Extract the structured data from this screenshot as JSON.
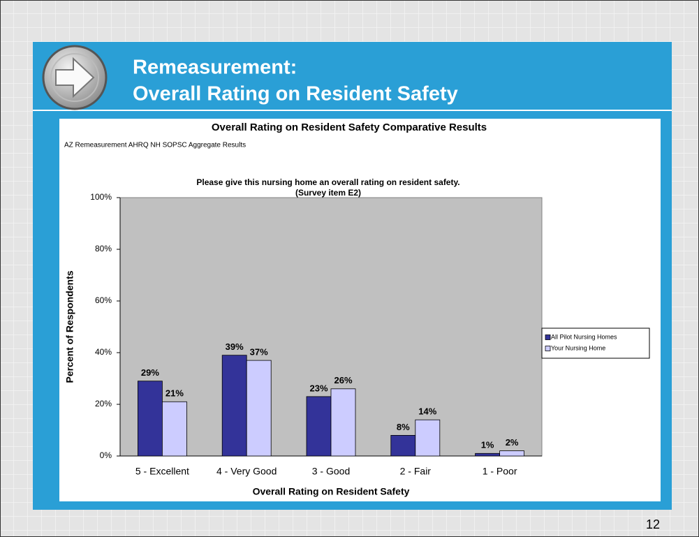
{
  "slide": {
    "title_lines": [
      "Remeasurement:",
      "Overall Rating on Resident Safety"
    ],
    "page_number": "12"
  },
  "chart_data": {
    "type": "bar",
    "title": "Overall Rating on Resident Safety Comparative Results",
    "subtitle": "AZ Remeasurement AHRQ NH SOPSC Aggregate Results",
    "question_lines": [
      "Please give this nursing home an overall rating on resident safety.",
      "(Survey item E2)"
    ],
    "x_label": "Overall Rating on Resident Safety",
    "y_label": "Percent of Respondents",
    "categories": [
      "5 - Excellent",
      "4 - Very Good",
      "3 - Good",
      "2 - Fair",
      "1 - Poor"
    ],
    "series": [
      {
        "name": "All Pilot Nursing Homes",
        "color": "#333399",
        "values": [
          29,
          39,
          23,
          8,
          1
        ],
        "value_labels": [
          "29%",
          "39%",
          "23%",
          "8%",
          "1%"
        ]
      },
      {
        "name": "Your Nursing Home",
        "color": "#ccccff",
        "values": [
          21,
          37,
          26,
          14,
          2
        ],
        "value_labels": [
          "21%",
          "37%",
          "26%",
          "14%",
          "2%"
        ]
      }
    ],
    "ylim": [
      0,
      100
    ],
    "yticks": [
      {
        "value": 0,
        "label": "0%"
      },
      {
        "value": 20,
        "label": "20%"
      },
      {
        "value": 40,
        "label": "40%"
      },
      {
        "value": 60,
        "label": "60%"
      },
      {
        "value": 80,
        "label": "80%"
      },
      {
        "value": 100,
        "label": "100%"
      }
    ],
    "grid": false,
    "legend": "right"
  }
}
